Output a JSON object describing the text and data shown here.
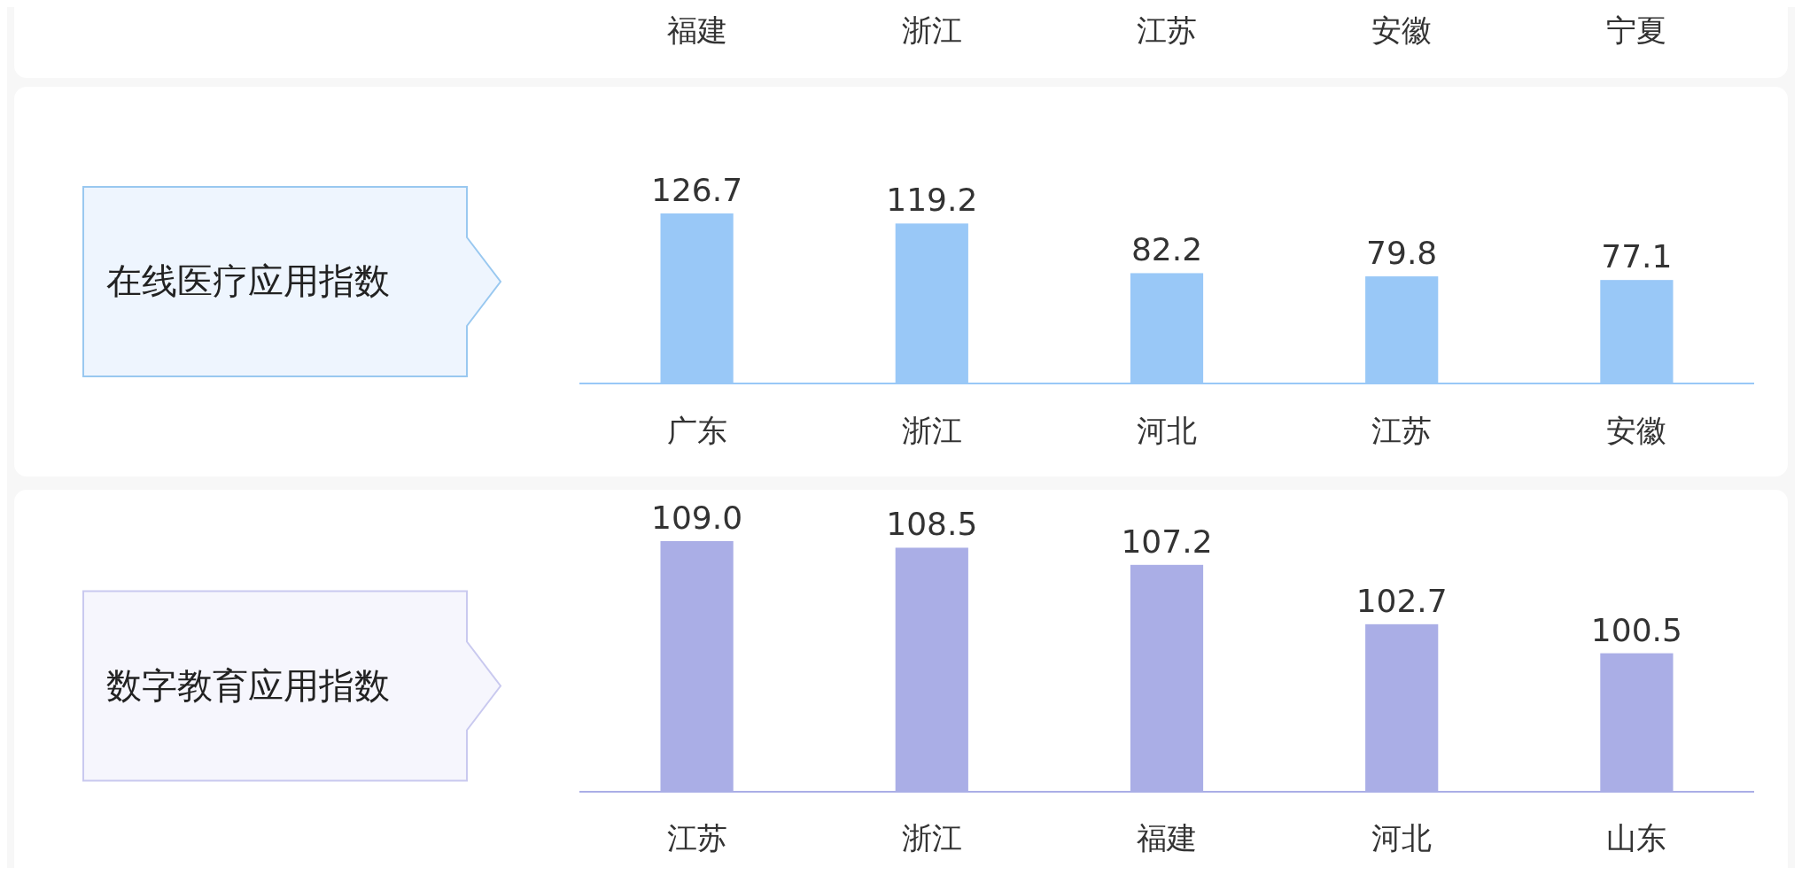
{
  "chart_data": [
    {
      "type": "other",
      "annotations": [
        "福建",
        "浙江",
        "江苏",
        "安徽",
        "宁夏"
      ]
    },
    {
      "type": "bar",
      "title": "在线医疗应用指数",
      "categories": [
        "广东",
        "浙江",
        "河北",
        "江苏",
        "安徽"
      ],
      "values": [
        126.7,
        119.2,
        82.2,
        79.8,
        77.1
      ],
      "color": "#99c8f7",
      "ylim": [
        0,
        126.7
      ],
      "value_labels": [
        "126.7",
        "119.2",
        "82.2",
        "79.8",
        "77.1"
      ]
    },
    {
      "type": "bar",
      "title": "数字教育应用指数",
      "categories": [
        "江苏",
        "浙江",
        "福建",
        "河北",
        "山东"
      ],
      "values": [
        109.0,
        108.5,
        107.2,
        102.7,
        100.5
      ],
      "color": "#aaaee6",
      "ylim": [
        90,
        109.0
      ],
      "value_labels": [
        "109.0",
        "108.5",
        "107.2",
        "102.7",
        "100.5"
      ]
    }
  ]
}
